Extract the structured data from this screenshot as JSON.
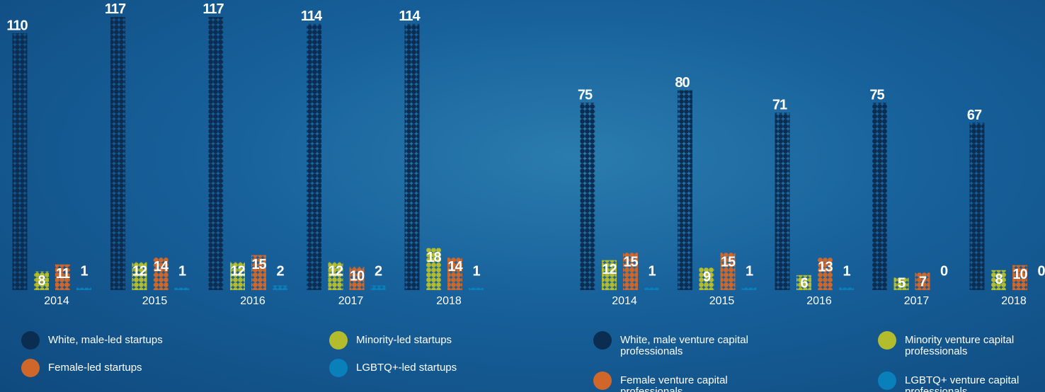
{
  "chart_data": [
    {
      "type": "bar",
      "categories": [
        "2014",
        "2015",
        "2016",
        "2017",
        "2018"
      ],
      "series": [
        {
          "name": "White, male-led startups",
          "color": "#0c2d52",
          "values": [
            110,
            117,
            117,
            114,
            114
          ]
        },
        {
          "name": "Minority-led startups",
          "color": "#b3bc2c",
          "values": [
            8,
            12,
            12,
            12,
            18
          ]
        },
        {
          "name": "Female-led startups",
          "color": "#d0672a",
          "values": [
            11,
            14,
            15,
            10,
            14
          ]
        },
        {
          "name": "LGBTQ+-led startups",
          "color": "#0a80bb",
          "values": [
            1,
            1,
            2,
            2,
            1
          ]
        }
      ]
    },
    {
      "type": "bar",
      "categories": [
        "2014",
        "2015",
        "2016",
        "2017",
        "2018"
      ],
      "series": [
        {
          "name": "White, male venture capital professionals",
          "color": "#0c2d52",
          "values": [
            75,
            80,
            71,
            75,
            67
          ]
        },
        {
          "name": "Minority venture capital professionals",
          "color": "#b3bc2c",
          "values": [
            12,
            9,
            6,
            5,
            8
          ]
        },
        {
          "name": "Female venture capital professionals",
          "color": "#d0672a",
          "values": [
            15,
            15,
            13,
            7,
            10
          ]
        },
        {
          "name": "LGBTQ+ venture capital professionals",
          "color": "#0a80bb",
          "values": [
            1,
            1,
            1,
            0,
            0
          ]
        }
      ]
    }
  ]
}
